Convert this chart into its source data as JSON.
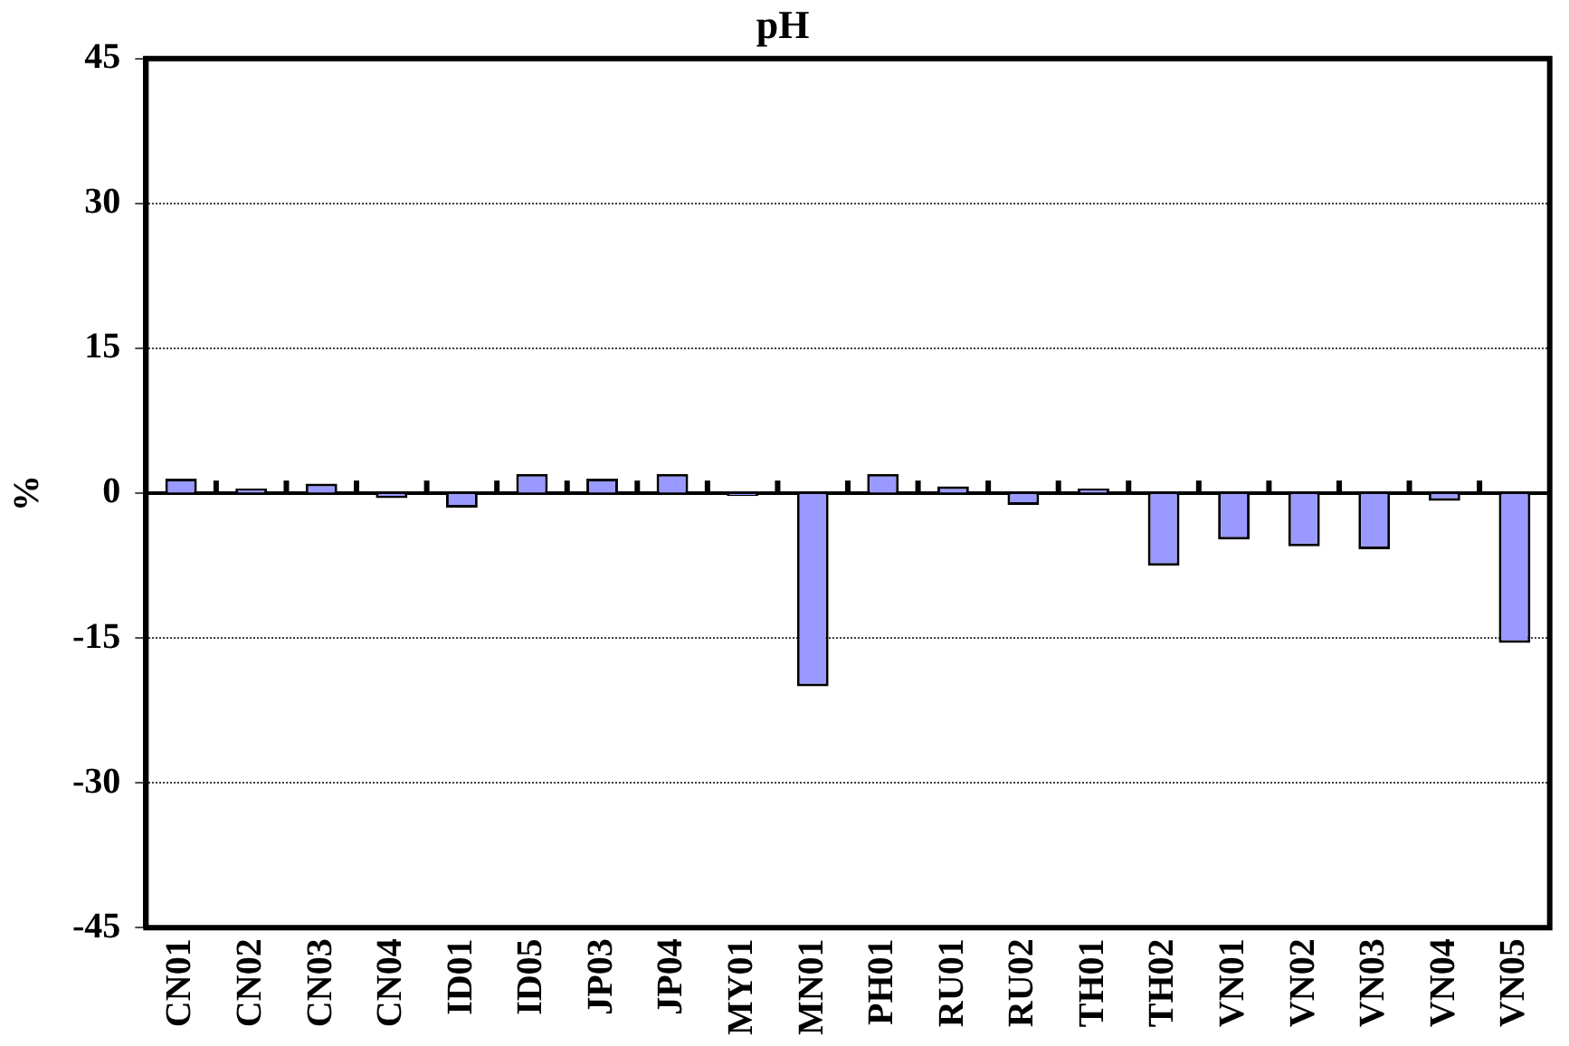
{
  "chart_data": {
    "type": "bar",
    "title": "pH",
    "ylabel": "%",
    "categories": [
      "CN01",
      "CN02",
      "CN03",
      "CN04",
      "ID01",
      "ID05",
      "JP03",
      "JP04",
      "MY01",
      "MN01",
      "PH01",
      "RU01",
      "RU02",
      "TH01",
      "TH02",
      "VN01",
      "VN02",
      "VN03",
      "VN04",
      "VN05"
    ],
    "values": [
      1.5,
      0.5,
      1.0,
      -0.5,
      -1.5,
      2.0,
      1.5,
      2.0,
      -0.3,
      -20,
      2.0,
      0.7,
      -1.2,
      0.5,
      -7.5,
      -4.8,
      -5.5,
      -5.8,
      -0.8,
      -15.5
    ],
    "color": "#9999ff",
    "ylim": [
      -45,
      45
    ],
    "yticks": [
      -45,
      -30,
      -15,
      0,
      15,
      30,
      45
    ],
    "grid": "y",
    "legend": false
  }
}
